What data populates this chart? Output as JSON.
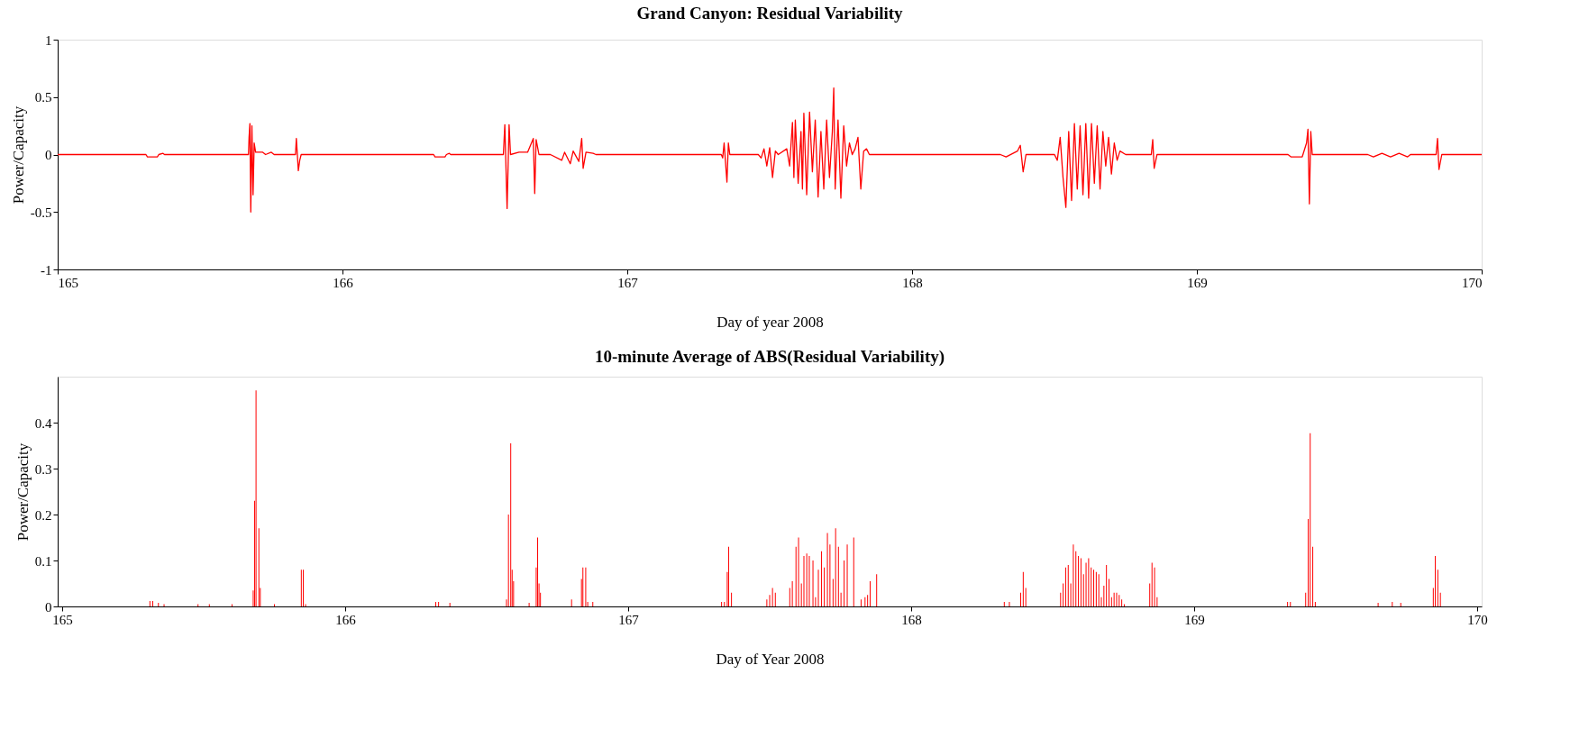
{
  "chart_data": [
    {
      "type": "line",
      "title": "Grand Canyon: Residual Variability",
      "xlabel": "Day of year 2008",
      "ylabel": "Power/Capacity",
      "xlim": [
        165,
        170
      ],
      "xticks": [
        165,
        166,
        167,
        168,
        169,
        170
      ],
      "ylim": [
        -1,
        1
      ],
      "yticks": [
        -1,
        -0.5,
        0,
        0.5,
        1
      ],
      "series": [
        {
          "color": "#ff0000",
          "x": [
            165.0,
            165.31,
            165.315,
            165.35,
            165.355,
            165.37,
            165.375,
            165.67,
            165.672,
            165.675,
            165.678,
            165.682,
            165.686,
            165.69,
            165.695,
            165.72,
            165.73,
            165.75,
            165.76,
            165.835,
            165.838,
            165.845,
            165.85,
            165.855,
            166.32,
            166.325,
            166.36,
            166.365,
            166.375,
            166.38,
            166.565,
            166.57,
            166.578,
            166.585,
            166.59,
            166.62,
            166.65,
            166.67,
            166.675,
            166.68,
            166.69,
            166.73,
            166.77,
            166.78,
            166.8,
            166.81,
            166.83,
            166.84,
            166.845,
            166.855,
            166.88,
            166.89,
            167.33,
            167.335,
            167.34,
            167.35,
            167.355,
            167.36,
            167.46,
            167.47,
            167.48,
            167.49,
            167.5,
            167.51,
            167.52,
            167.53,
            167.56,
            167.57,
            167.58,
            167.585,
            167.59,
            167.6,
            167.61,
            167.615,
            167.62,
            167.63,
            167.64,
            167.65,
            167.66,
            167.67,
            167.68,
            167.69,
            167.7,
            167.71,
            167.72,
            167.725,
            167.73,
            167.74,
            167.75,
            167.76,
            167.77,
            167.78,
            167.79,
            167.8,
            167.81,
            167.82,
            167.83,
            167.84,
            167.85,
            167.87,
            168.31,
            168.33,
            168.37,
            168.38,
            168.39,
            168.4,
            168.5,
            168.51,
            168.52,
            168.53,
            168.54,
            168.55,
            168.56,
            168.57,
            168.58,
            168.59,
            168.6,
            168.61,
            168.62,
            168.63,
            168.64,
            168.65,
            168.66,
            168.67,
            168.68,
            168.69,
            168.7,
            168.71,
            168.72,
            168.73,
            168.75,
            168.84,
            168.845,
            168.85,
            168.86,
            169.32,
            169.33,
            169.37,
            169.385,
            169.39,
            169.395,
            169.4,
            169.405,
            169.6,
            169.62,
            169.65,
            169.68,
            169.71,
            169.74,
            169.75,
            169.84,
            169.845,
            169.85,
            169.86,
            170.0
          ],
          "values": [
            0,
            0,
            -0.02,
            -0.02,
            0,
            0.01,
            0,
            0,
            0.15,
            0.27,
            -0.5,
            0.25,
            -0.35,
            0.1,
            0.02,
            0.02,
            0,
            0.02,
            0,
            0,
            0.14,
            -0.14,
            -0.05,
            0,
            0,
            -0.02,
            -0.02,
            0,
            0.01,
            0,
            0,
            0.26,
            -0.47,
            0.26,
            0,
            0.02,
            0.02,
            0.14,
            -0.34,
            0.13,
            0,
            0,
            -0.05,
            0.02,
            -0.08,
            0.03,
            -0.06,
            0.14,
            -0.12,
            0.02,
            0.01,
            0,
            0,
            -0.03,
            0.1,
            -0.24,
            0.1,
            0,
            0,
            -0.03,
            0.05,
            -0.1,
            0.06,
            -0.2,
            0.03,
            0,
            0.05,
            -0.1,
            0.28,
            -0.2,
            0.3,
            -0.25,
            0.2,
            -0.3,
            0.36,
            -0.35,
            0.37,
            -0.15,
            0.3,
            -0.37,
            0.2,
            -0.3,
            0.3,
            -0.2,
            0.2,
            0.58,
            -0.3,
            0.3,
            -0.38,
            0.25,
            -0.1,
            0.1,
            0,
            0.05,
            0.15,
            -0.3,
            0.03,
            0.05,
            0,
            0,
            0,
            -0.02,
            0.03,
            0.08,
            -0.15,
            0,
            0,
            -0.05,
            0.15,
            -0.2,
            -0.46,
            0.2,
            -0.4,
            0.27,
            -0.3,
            0.25,
            -0.35,
            0.27,
            -0.38,
            0.27,
            -0.25,
            0.25,
            -0.3,
            0.2,
            -0.1,
            0.15,
            -0.17,
            0.1,
            -0.05,
            0.03,
            0,
            0,
            0.13,
            -0.12,
            0,
            0,
            -0.02,
            -0.02,
            0.1,
            0.22,
            -0.43,
            0.2,
            0,
            0,
            -0.02,
            0.01,
            -0.02,
            0.01,
            -0.02,
            0,
            0,
            0.14,
            -0.13,
            0,
            0
          ]
        }
      ]
    },
    {
      "type": "bar",
      "title": "10-minute Average of ABS(Residual Variability)",
      "xlabel": "Day of Year 2008",
      "ylabel": "Power/Capacity",
      "xlim": [
        165,
        170
      ],
      "xticks": [
        165,
        166,
        167,
        168,
        169,
        170
      ],
      "ylim": [
        0,
        0.5
      ],
      "yticks": [
        0,
        0.1,
        0.2,
        0.3,
        0.4
      ],
      "series": [
        {
          "color": "#ff0000",
          "x": [
            165.31,
            165.32,
            165.34,
            165.36,
            165.48,
            165.52,
            165.6,
            165.675,
            165.68,
            165.685,
            165.695,
            165.7,
            165.75,
            165.845,
            165.852,
            165.86,
            166.32,
            166.33,
            166.37,
            166.57,
            166.577,
            166.585,
            166.59,
            166.595,
            166.65,
            166.675,
            166.68,
            166.685,
            166.69,
            166.8,
            166.835,
            166.84,
            166.85,
            166.857,
            166.875,
            167.33,
            167.34,
            167.35,
            167.355,
            167.365,
            167.49,
            167.5,
            167.51,
            167.52,
            167.571,
            167.58,
            167.593,
            167.602,
            167.612,
            167.621,
            167.631,
            167.64,
            167.653,
            167.662,
            167.672,
            167.683,
            167.693,
            167.704,
            167.713,
            167.724,
            167.733,
            167.743,
            167.752,
            167.763,
            167.774,
            167.797,
            167.823,
            167.837,
            167.846,
            167.855,
            167.878,
            168.329,
            168.347,
            168.387,
            168.396,
            168.405,
            168.528,
            168.537,
            168.546,
            168.555,
            168.564,
            168.573,
            168.582,
            168.591,
            168.6,
            168.609,
            168.618,
            168.627,
            168.636,
            168.645,
            168.654,
            168.663,
            168.672,
            168.681,
            168.69,
            168.699,
            168.708,
            168.717,
            168.726,
            168.735,
            168.744,
            168.753,
            168.843,
            168.851,
            168.86,
            168.869,
            169.33,
            169.34,
            169.394,
            169.403,
            169.41,
            169.419,
            169.428,
            169.65,
            169.7,
            169.73,
            169.845,
            169.852,
            169.861,
            169.87
          ],
          "values": [
            0.012,
            0.012,
            0.008,
            0.005,
            0.005,
            0.005,
            0.005,
            0.035,
            0.23,
            0.47,
            0.17,
            0.04,
            0.005,
            0.08,
            0.08,
            0.005,
            0.01,
            0.01,
            0.008,
            0.015,
            0.2,
            0.355,
            0.08,
            0.055,
            0.008,
            0.085,
            0.15,
            0.05,
            0.03,
            0.015,
            0.06,
            0.085,
            0.085,
            0.01,
            0.01,
            0.01,
            0.01,
            0.075,
            0.13,
            0.03,
            0.015,
            0.025,
            0.04,
            0.03,
            0.04,
            0.055,
            0.13,
            0.15,
            0.05,
            0.11,
            0.115,
            0.11,
            0.1,
            0.02,
            0.08,
            0.12,
            0.085,
            0.16,
            0.135,
            0.06,
            0.17,
            0.13,
            0.03,
            0.1,
            0.135,
            0.15,
            0.015,
            0.02,
            0.025,
            0.055,
            0.07,
            0.01,
            0.01,
            0.03,
            0.075,
            0.04,
            0.03,
            0.05,
            0.085,
            0.09,
            0.05,
            0.135,
            0.12,
            0.11,
            0.105,
            0.07,
            0.095,
            0.105,
            0.085,
            0.08,
            0.075,
            0.07,
            0.02,
            0.045,
            0.09,
            0.06,
            0.02,
            0.03,
            0.03,
            0.025,
            0.015,
            0.005,
            0.05,
            0.095,
            0.085,
            0.02,
            0.01,
            0.01,
            0.03,
            0.19,
            0.377,
            0.13,
            0.01,
            0.008,
            0.01,
            0.008,
            0.04,
            0.11,
            0.08,
            0.03
          ]
        }
      ]
    }
  ]
}
